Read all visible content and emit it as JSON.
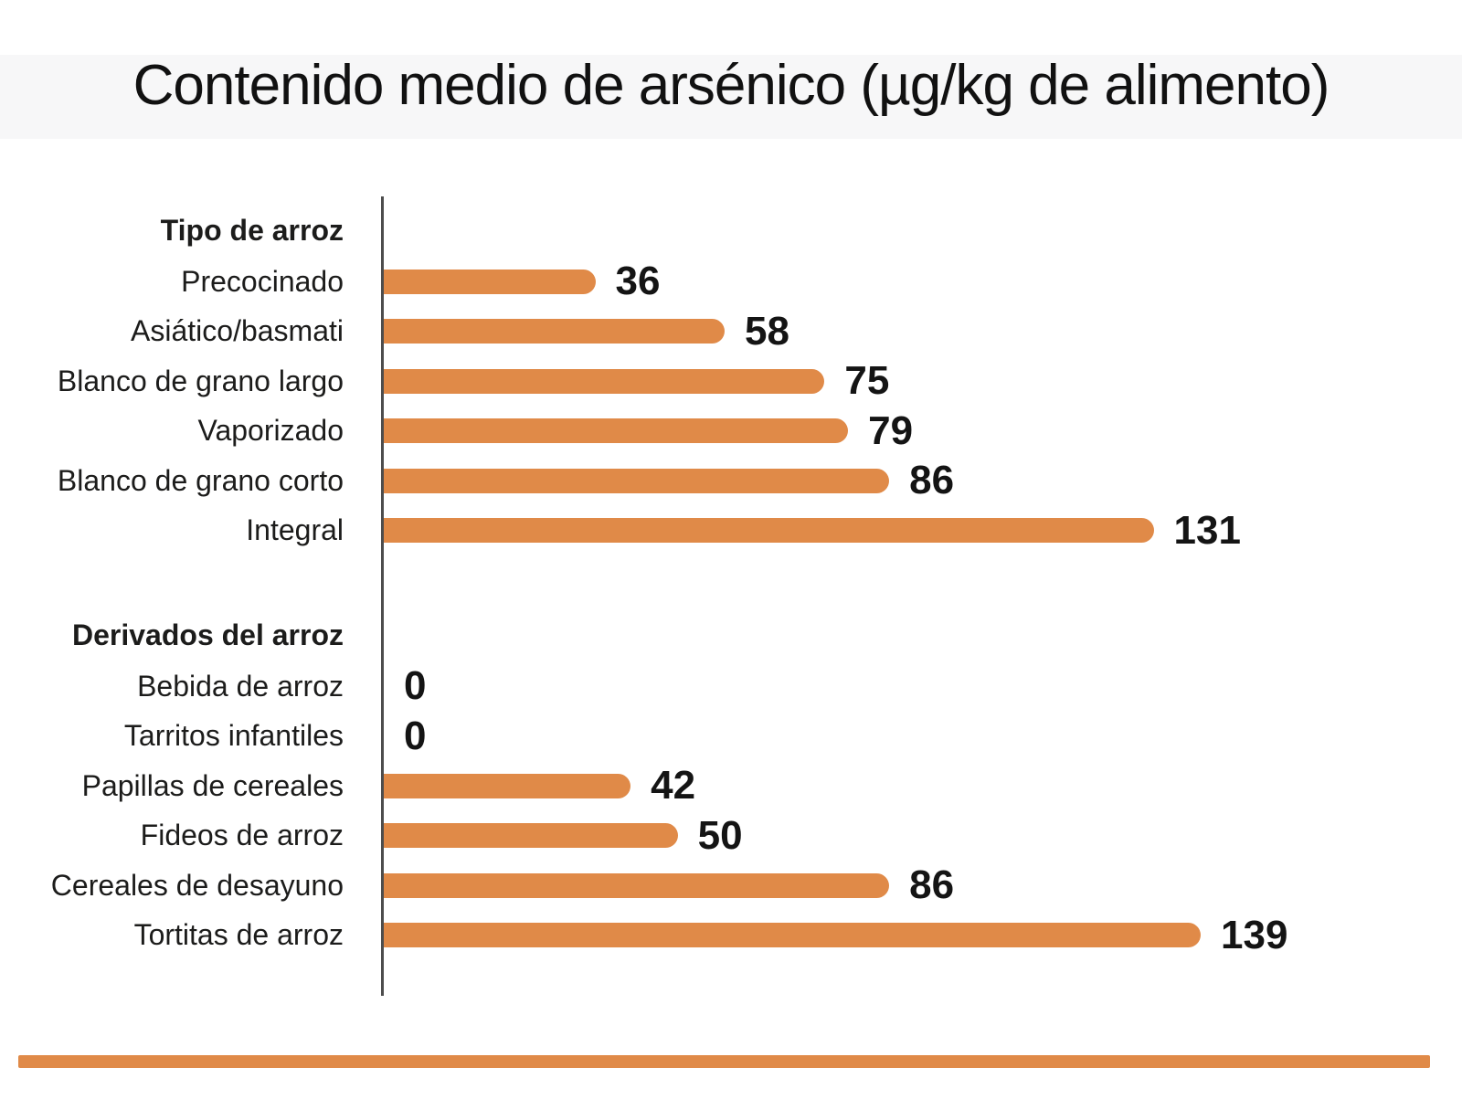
{
  "title": "Contenido medio de arsénico (µg/kg de alimento)",
  "colors": {
    "bar": "#E08A48",
    "rule": "#E08A48",
    "axis": "#4D4D4D",
    "text": "#1C1C1B",
    "value": "#141414",
    "title_band": "#F7F7F8"
  },
  "chart_data": {
    "type": "bar",
    "orientation": "horizontal",
    "title": "Contenido medio de arsénico (µg/kg de alimento)",
    "value_unit": "µg/kg de alimento",
    "xlim": [
      0,
      139
    ],
    "grid": "off",
    "legend": "none",
    "value_labels": "bold, at right end of each bar",
    "groups": [
      {
        "label": "Tipo de arroz",
        "items": [
          {
            "label": "Precocinado",
            "value": 36
          },
          {
            "label": "Asiático/basmati",
            "value": 58
          },
          {
            "label": "Blanco de grano largo",
            "value": 75
          },
          {
            "label": "Vaporizado",
            "value": 79
          },
          {
            "label": "Blanco de grano corto",
            "value": 86
          },
          {
            "label": "Integral",
            "value": 131
          }
        ]
      },
      {
        "label": "Derivados del arroz",
        "items": [
          {
            "label": "Bebida de arroz",
            "value": 0
          },
          {
            "label": "Tarritos infantiles",
            "value": 0
          },
          {
            "label": "Papillas de cereales",
            "value": 42
          },
          {
            "label": "Fideos de arroz",
            "value": 50
          },
          {
            "label": "Cereales de desayuno",
            "value": 86
          },
          {
            "label": "Tortitas de arroz",
            "value": 139
          }
        ]
      }
    ]
  }
}
